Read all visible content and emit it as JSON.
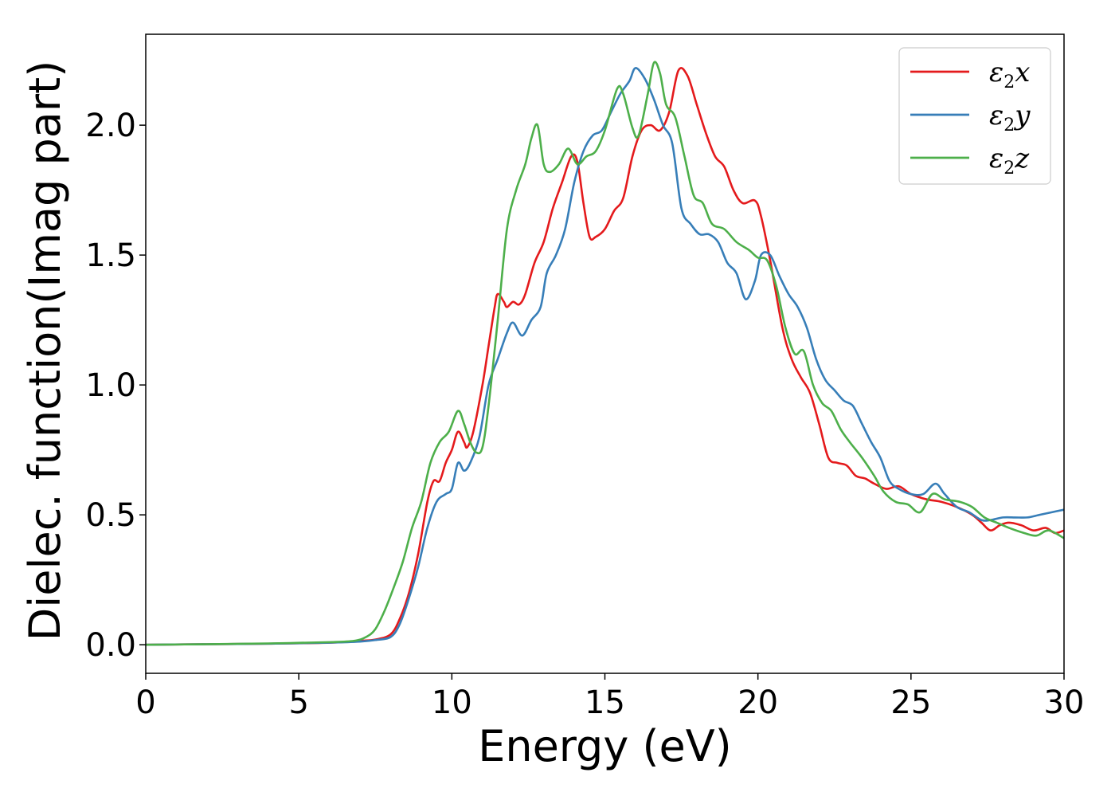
{
  "chart_data": {
    "type": "line",
    "xlabel": "Energy (eV)",
    "ylabel": "Dielec. function(Imag part)",
    "xlim": [
      0,
      30
    ],
    "ylim": [
      -0.11,
      2.35
    ],
    "xticks": [
      0,
      5,
      10,
      15,
      20,
      25,
      30
    ],
    "yticks": [
      0.0,
      0.5,
      1.0,
      1.5,
      2.0
    ],
    "xtick_labels": [
      "0",
      "5",
      "10",
      "15",
      "20",
      "25",
      "30"
    ],
    "ytick_labels": [
      "0.0",
      "0.5",
      "1.0",
      "1.5",
      "2.0"
    ],
    "grid": false,
    "legend_position": "top-right",
    "series": [
      {
        "name": "ε2x",
        "legend_base": "ε",
        "legend_sub": "2",
        "legend_tail": "x",
        "color": "#e41a1c",
        "points": [
          [
            0,
            0
          ],
          [
            2,
            0.002
          ],
          [
            4,
            0.004
          ],
          [
            6,
            0.008
          ],
          [
            7,
            0.015
          ],
          [
            7.5,
            0.02
          ],
          [
            8,
            0.04
          ],
          [
            8.3,
            0.1
          ],
          [
            8.6,
            0.2
          ],
          [
            8.9,
            0.35
          ],
          [
            9.2,
            0.55
          ],
          [
            9.4,
            0.63
          ],
          [
            9.6,
            0.63
          ],
          [
            9.8,
            0.7
          ],
          [
            10,
            0.75
          ],
          [
            10.2,
            0.82
          ],
          [
            10.4,
            0.78
          ],
          [
            10.5,
            0.76
          ],
          [
            10.7,
            0.82
          ],
          [
            11,
            1.0
          ],
          [
            11.2,
            1.15
          ],
          [
            11.4,
            1.3
          ],
          [
            11.5,
            1.35
          ],
          [
            11.7,
            1.32
          ],
          [
            11.8,
            1.3
          ],
          [
            12,
            1.32
          ],
          [
            12.2,
            1.31
          ],
          [
            12.4,
            1.35
          ],
          [
            12.7,
            1.47
          ],
          [
            13,
            1.55
          ],
          [
            13.3,
            1.68
          ],
          [
            13.6,
            1.78
          ],
          [
            13.9,
            1.88
          ],
          [
            14.1,
            1.86
          ],
          [
            14.3,
            1.7
          ],
          [
            14.5,
            1.57
          ],
          [
            14.7,
            1.57
          ],
          [
            15,
            1.6
          ],
          [
            15.3,
            1.67
          ],
          [
            15.6,
            1.72
          ],
          [
            15.9,
            1.88
          ],
          [
            16.2,
            1.98
          ],
          [
            16.5,
            2.0
          ],
          [
            16.8,
            1.98
          ],
          [
            17.1,
            2.05
          ],
          [
            17.4,
            2.21
          ],
          [
            17.7,
            2.19
          ],
          [
            18,
            2.08
          ],
          [
            18.3,
            1.97
          ],
          [
            18.6,
            1.88
          ],
          [
            18.9,
            1.84
          ],
          [
            19.2,
            1.75
          ],
          [
            19.5,
            1.7
          ],
          [
            19.9,
            1.71
          ],
          [
            20.1,
            1.65
          ],
          [
            20.4,
            1.48
          ],
          [
            20.8,
            1.22
          ],
          [
            21.1,
            1.1
          ],
          [
            21.4,
            1.03
          ],
          [
            21.7,
            0.97
          ],
          [
            22,
            0.85
          ],
          [
            22.3,
            0.72
          ],
          [
            22.6,
            0.7
          ],
          [
            22.9,
            0.69
          ],
          [
            23.2,
            0.65
          ],
          [
            23.5,
            0.64
          ],
          [
            23.8,
            0.62
          ],
          [
            24.2,
            0.6
          ],
          [
            24.6,
            0.61
          ],
          [
            25,
            0.58
          ],
          [
            25.5,
            0.56
          ],
          [
            26,
            0.55
          ],
          [
            26.5,
            0.53
          ],
          [
            27,
            0.5
          ],
          [
            27.3,
            0.47
          ],
          [
            27.6,
            0.44
          ],
          [
            27.9,
            0.46
          ],
          [
            28.2,
            0.47
          ],
          [
            28.6,
            0.46
          ],
          [
            29,
            0.44
          ],
          [
            29.4,
            0.45
          ],
          [
            29.7,
            0.43
          ],
          [
            30,
            0.44
          ]
        ]
      },
      {
        "name": "ε2y",
        "legend_base": "ε",
        "legend_sub": "2",
        "legend_tail": "y",
        "color": "#377eb8",
        "points": [
          [
            0,
            0
          ],
          [
            2,
            0.002
          ],
          [
            4,
            0.004
          ],
          [
            6,
            0.008
          ],
          [
            7,
            0.012
          ],
          [
            7.5,
            0.018
          ],
          [
            8,
            0.03
          ],
          [
            8.3,
            0.08
          ],
          [
            8.6,
            0.18
          ],
          [
            8.9,
            0.3
          ],
          [
            9.2,
            0.45
          ],
          [
            9.5,
            0.55
          ],
          [
            9.8,
            0.58
          ],
          [
            10,
            0.6
          ],
          [
            10.2,
            0.7
          ],
          [
            10.4,
            0.67
          ],
          [
            10.6,
            0.7
          ],
          [
            10.9,
            0.8
          ],
          [
            11.2,
            1.0
          ],
          [
            11.5,
            1.1
          ],
          [
            11.8,
            1.2
          ],
          [
            12,
            1.24
          ],
          [
            12.3,
            1.19
          ],
          [
            12.6,
            1.25
          ],
          [
            12.9,
            1.3
          ],
          [
            13.1,
            1.43
          ],
          [
            13.4,
            1.5
          ],
          [
            13.7,
            1.6
          ],
          [
            14,
            1.78
          ],
          [
            14.3,
            1.9
          ],
          [
            14.6,
            1.96
          ],
          [
            14.9,
            1.98
          ],
          [
            15.2,
            2.05
          ],
          [
            15.5,
            2.12
          ],
          [
            15.8,
            2.17
          ],
          [
            16,
            2.22
          ],
          [
            16.3,
            2.18
          ],
          [
            16.6,
            2.1
          ],
          [
            16.9,
            2.0
          ],
          [
            17.2,
            1.93
          ],
          [
            17.5,
            1.68
          ],
          [
            17.8,
            1.62
          ],
          [
            18.1,
            1.58
          ],
          [
            18.4,
            1.58
          ],
          [
            18.7,
            1.55
          ],
          [
            19,
            1.47
          ],
          [
            19.3,
            1.43
          ],
          [
            19.6,
            1.33
          ],
          [
            19.9,
            1.4
          ],
          [
            20.1,
            1.5
          ],
          [
            20.4,
            1.5
          ],
          [
            20.7,
            1.42
          ],
          [
            21,
            1.35
          ],
          [
            21.3,
            1.3
          ],
          [
            21.6,
            1.22
          ],
          [
            21.9,
            1.1
          ],
          [
            22.2,
            1.02
          ],
          [
            22.5,
            0.98
          ],
          [
            22.8,
            0.94
          ],
          [
            23.1,
            0.92
          ],
          [
            23.4,
            0.85
          ],
          [
            23.7,
            0.78
          ],
          [
            24,
            0.72
          ],
          [
            24.3,
            0.63
          ],
          [
            24.6,
            0.6
          ],
          [
            25,
            0.58
          ],
          [
            25.4,
            0.58
          ],
          [
            25.8,
            0.62
          ],
          [
            26.1,
            0.58
          ],
          [
            26.5,
            0.53
          ],
          [
            26.9,
            0.51
          ],
          [
            27.3,
            0.48
          ],
          [
            27.6,
            0.48
          ],
          [
            28,
            0.49
          ],
          [
            28.4,
            0.49
          ],
          [
            28.8,
            0.49
          ],
          [
            29.2,
            0.5
          ],
          [
            29.6,
            0.51
          ],
          [
            30,
            0.52
          ]
        ]
      },
      {
        "name": "ε2z",
        "legend_base": "ε",
        "legend_sub": "2",
        "legend_tail": "z",
        "color": "#4daf4a",
        "points": [
          [
            0,
            0
          ],
          [
            2,
            0.002
          ],
          [
            4,
            0.005
          ],
          [
            6,
            0.01
          ],
          [
            6.8,
            0.015
          ],
          [
            7.2,
            0.03
          ],
          [
            7.5,
            0.06
          ],
          [
            7.8,
            0.13
          ],
          [
            8.1,
            0.22
          ],
          [
            8.4,
            0.32
          ],
          [
            8.7,
            0.45
          ],
          [
            9,
            0.55
          ],
          [
            9.3,
            0.7
          ],
          [
            9.6,
            0.78
          ],
          [
            9.9,
            0.82
          ],
          [
            10.2,
            0.9
          ],
          [
            10.4,
            0.85
          ],
          [
            10.6,
            0.78
          ],
          [
            10.8,
            0.74
          ],
          [
            11,
            0.76
          ],
          [
            11.2,
            0.92
          ],
          [
            11.5,
            1.25
          ],
          [
            11.8,
            1.6
          ],
          [
            12.1,
            1.75
          ],
          [
            12.4,
            1.85
          ],
          [
            12.6,
            1.95
          ],
          [
            12.8,
            2.0
          ],
          [
            13,
            1.85
          ],
          [
            13.2,
            1.82
          ],
          [
            13.5,
            1.85
          ],
          [
            13.8,
            1.91
          ],
          [
            14.1,
            1.85
          ],
          [
            14.4,
            1.88
          ],
          [
            14.7,
            1.9
          ],
          [
            15,
            1.98
          ],
          [
            15.4,
            2.14
          ],
          [
            15.6,
            2.12
          ],
          [
            15.9,
            1.99
          ],
          [
            16.1,
            1.96
          ],
          [
            16.4,
            2.12
          ],
          [
            16.6,
            2.24
          ],
          [
            16.8,
            2.2
          ],
          [
            17,
            2.08
          ],
          [
            17.3,
            2.03
          ],
          [
            17.6,
            1.88
          ],
          [
            17.9,
            1.73
          ],
          [
            18.2,
            1.7
          ],
          [
            18.5,
            1.62
          ],
          [
            18.9,
            1.6
          ],
          [
            19.3,
            1.55
          ],
          [
            19.7,
            1.52
          ],
          [
            20,
            1.49
          ],
          [
            20.3,
            1.48
          ],
          [
            20.6,
            1.38
          ],
          [
            20.9,
            1.22
          ],
          [
            21.2,
            1.12
          ],
          [
            21.5,
            1.13
          ],
          [
            21.8,
            1.0
          ],
          [
            22.1,
            0.93
          ],
          [
            22.4,
            0.9
          ],
          [
            22.7,
            0.83
          ],
          [
            23,
            0.78
          ],
          [
            23.4,
            0.72
          ],
          [
            23.8,
            0.65
          ],
          [
            24.1,
            0.59
          ],
          [
            24.5,
            0.55
          ],
          [
            24.9,
            0.54
          ],
          [
            25.3,
            0.51
          ],
          [
            25.7,
            0.58
          ],
          [
            26.1,
            0.56
          ],
          [
            26.6,
            0.55
          ],
          [
            27,
            0.53
          ],
          [
            27.4,
            0.49
          ],
          [
            27.8,
            0.47
          ],
          [
            28.2,
            0.45
          ],
          [
            28.7,
            0.43
          ],
          [
            29.1,
            0.42
          ],
          [
            29.5,
            0.44
          ],
          [
            30,
            0.41
          ]
        ]
      }
    ]
  }
}
